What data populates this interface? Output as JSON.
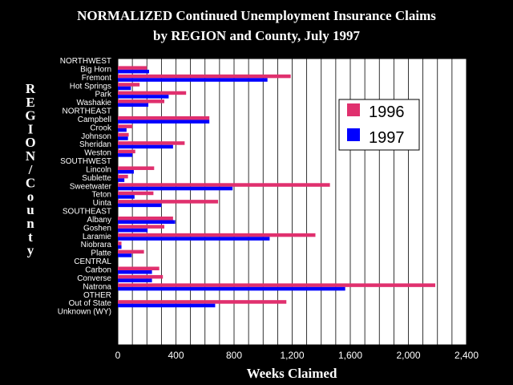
{
  "chart_data": {
    "type": "bar",
    "orientation": "horizontal",
    "title_line1": "NORMALIZED Continued Unemployment Insurance Claims",
    "title_line2": "by REGION and County, July 1997",
    "xlabel": "Weeks Claimed",
    "ylabel": "REGION/County",
    "xlim": [
      0,
      2400
    ],
    "xticks": [
      "0",
      "400",
      "800",
      "1,200",
      "1,600",
      "2,000",
      "2,400"
    ],
    "grid": "vertical",
    "legend_position": "right",
    "rows": [
      "NORTHWEST",
      "Big Horn",
      "Fremont",
      "Hot Springs",
      "Park",
      "Washakie",
      "NORTHEAST",
      "Campbell",
      "Crook",
      "Johnson",
      "Sheridan",
      "Weston",
      "SOUTHWEST",
      "Lincoln",
      "Sublette",
      "Sweetwater",
      "Teton",
      "Uinta",
      "SOUTHEAST",
      "Albany",
      "Goshen",
      "Laramie",
      "Niobrara",
      "Platte",
      "CENTRAL",
      "Carbon",
      "Converse",
      "Natrona",
      "OTHER",
      "Out of State",
      "Unknown (WY)"
    ],
    "series": [
      {
        "name": "1996",
        "color": "#e0306e",
        "values": [
          null,
          200,
          1190,
          150,
          470,
          320,
          null,
          630,
          100,
          75,
          460,
          120,
          null,
          250,
          70,
          1460,
          245,
          690,
          null,
          380,
          320,
          1360,
          25,
          180,
          null,
          285,
          310,
          2185,
          null,
          1160,
          0
        ]
      },
      {
        "name": "1997",
        "color": "#0000ff",
        "values": [
          null,
          215,
          1030,
          90,
          350,
          210,
          null,
          630,
          60,
          70,
          380,
          100,
          null,
          110,
          45,
          790,
          115,
          300,
          null,
          395,
          205,
          1045,
          25,
          95,
          null,
          235,
          235,
          1565,
          null,
          670,
          0
        ]
      }
    ]
  }
}
